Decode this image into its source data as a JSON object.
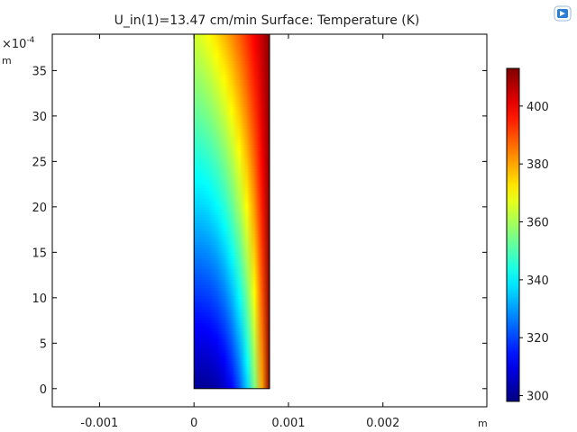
{
  "chart_data": {
    "type": "heatmap",
    "title": "U_in(1)=13.47 cm/min   Surface: Temperature (K)",
    "xlabel": "m",
    "ylabel": "m",
    "y_multiplier_label": "×10",
    "y_multiplier_exponent": "-4",
    "xlim": [
      -0.0015,
      0.0031
    ],
    "ylim": [
      -2,
      39
    ],
    "x_ticks": [
      {
        "value": -0.001,
        "label": "-0.001"
      },
      {
        "value": 0,
        "label": "0"
      },
      {
        "value": 0.001,
        "label": "0.001"
      },
      {
        "value": 0.002,
        "label": "0.002"
      }
    ],
    "y_ticks": [
      {
        "value": 0,
        "label": "0"
      },
      {
        "value": 5,
        "label": "5"
      },
      {
        "value": 10,
        "label": "10"
      },
      {
        "value": 15,
        "label": "15"
      },
      {
        "value": 20,
        "label": "20"
      },
      {
        "value": 25,
        "label": "25"
      },
      {
        "value": 30,
        "label": "30"
      },
      {
        "value": 35,
        "label": "35"
      }
    ],
    "domain": {
      "x": [
        0,
        0.0008
      ],
      "y": [
        0,
        39
      ]
    },
    "colorbar": {
      "range": [
        298,
        413
      ],
      "colormap": "jet",
      "ticks": [
        {
          "value": 300,
          "label": "300"
        },
        {
          "value": 320,
          "label": "320"
        },
        {
          "value": 340,
          "label": "340"
        },
        {
          "value": 360,
          "label": "360"
        },
        {
          "value": 380,
          "label": "380"
        },
        {
          "value": 400,
          "label": "400"
        }
      ]
    },
    "temperature_field": {
      "left_wall": [
        {
          "y": 0,
          "T": 300
        },
        {
          "y": 10,
          "T": 318
        },
        {
          "y": 20,
          "T": 336
        },
        {
          "y": 30,
          "T": 352
        },
        {
          "y": 39,
          "T": 365
        }
      ],
      "right_wall": [
        {
          "y": 0,
          "T": 412
        },
        {
          "y": 39,
          "T": 412
        }
      ]
    },
    "grid": false,
    "legend": "colorbar-right"
  },
  "toolbar": {
    "logo_icon": "comsol-logo-icon",
    "logo_color": "#2a7fd4"
  }
}
